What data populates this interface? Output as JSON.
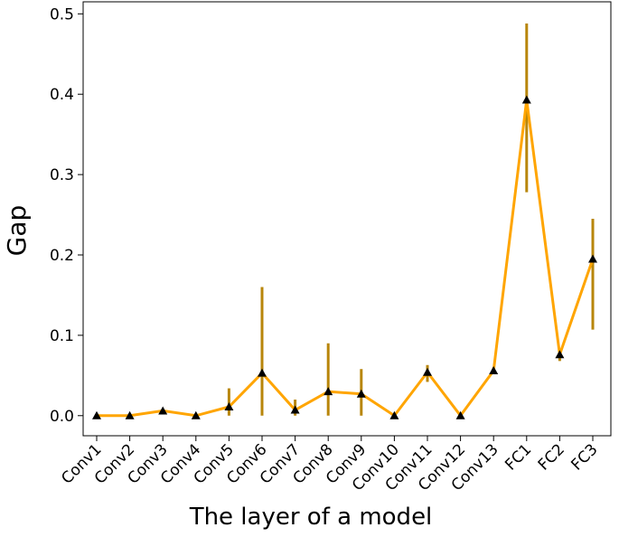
{
  "chart_data": {
    "type": "line",
    "x_label": "The layer of a model",
    "y_label": "Gap",
    "categories": [
      "Conv1",
      "Conv2",
      "Conv3",
      "Conv4",
      "Conv5",
      "Conv6",
      "Conv7",
      "Conv8",
      "Conv9",
      "Conv10",
      "Conv11",
      "Conv12",
      "Conv13",
      "FC1",
      "FC2",
      "FC3"
    ],
    "series": [
      {
        "color": "#ffa500",
        "error_color": "#b8860b",
        "marker_color": "#000000",
        "values": [
          0,
          0,
          0.006,
          0,
          0.011,
          0.053,
          0.007,
          0.03,
          0.027,
          0,
          0.054,
          0,
          0.056,
          0.393,
          0.076,
          0.195
        ],
        "lower": [
          0,
          0,
          0.004,
          0,
          0,
          0,
          0,
          0,
          0,
          0,
          0.042,
          0,
          0.053,
          0.278,
          0.068,
          0.107
        ],
        "upper": [
          0,
          0,
          0.008,
          0,
          0.034,
          0.16,
          0.02,
          0.09,
          0.058,
          0,
          0.063,
          0,
          0.06,
          0.488,
          0.082,
          0.245
        ]
      }
    ],
    "ylim": [
      -0.025,
      0.515
    ],
    "yticks": [
      {
        "value": 0,
        "label": "0.0"
      },
      0.1,
      0.2,
      0.3,
      0.4,
      0.5
    ]
  }
}
